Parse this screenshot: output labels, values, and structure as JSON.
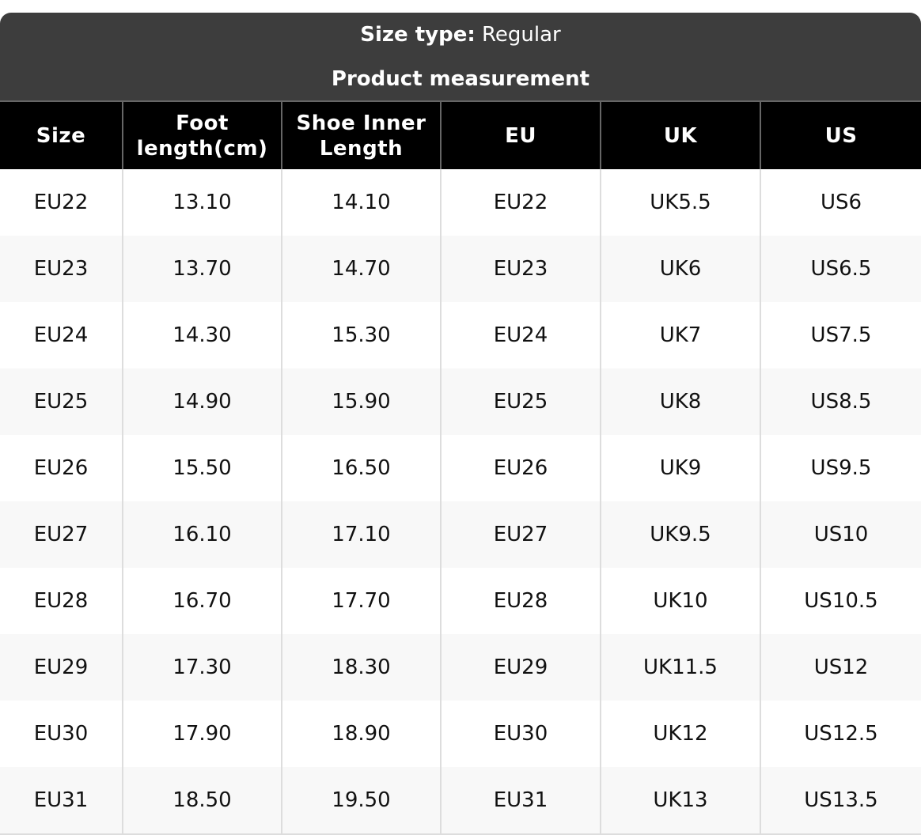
{
  "header": {
    "size_type_label": "Size type:",
    "size_type_value": "Regular",
    "subtitle": "Product measurement"
  },
  "columns": [
    "Size",
    "Foot length(cm)",
    "Shoe Inner Length",
    "EU",
    "UK",
    "US"
  ],
  "rows": [
    [
      "EU22",
      "13.10",
      "14.10",
      "EU22",
      "UK5.5",
      "US6"
    ],
    [
      "EU23",
      "13.70",
      "14.70",
      "EU23",
      "UK6",
      "US6.5"
    ],
    [
      "EU24",
      "14.30",
      "15.30",
      "EU24",
      "UK7",
      "US7.5"
    ],
    [
      "EU25",
      "14.90",
      "15.90",
      "EU25",
      "UK8",
      "US8.5"
    ],
    [
      "EU26",
      "15.50",
      "16.50",
      "EU26",
      "UK9",
      "US9.5"
    ],
    [
      "EU27",
      "16.10",
      "17.10",
      "EU27",
      "UK9.5",
      "US10"
    ],
    [
      "EU28",
      "16.70",
      "17.70",
      "EU28",
      "UK10",
      "US10.5"
    ],
    [
      "EU29",
      "17.30",
      "18.30",
      "EU29",
      "UK11.5",
      "US12"
    ],
    [
      "EU30",
      "17.90",
      "18.90",
      "EU30",
      "UK12",
      "US12.5"
    ],
    [
      "EU31",
      "18.50",
      "19.50",
      "EU31",
      "UK13",
      "US13.5"
    ]
  ]
}
